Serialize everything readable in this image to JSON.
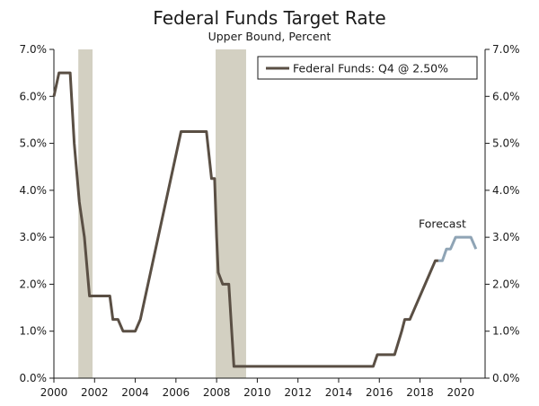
{
  "chart_data": {
    "type": "line",
    "title": "Federal Funds Target Rate",
    "subtitle": "Upper Bound, Percent",
    "xlabel": "",
    "ylabel": "",
    "xlim": [
      2000,
      2021.2
    ],
    "ylim": [
      0,
      7
    ],
    "x_ticks": [
      2000,
      2002,
      2004,
      2006,
      2008,
      2010,
      2012,
      2014,
      2016,
      2018,
      2020
    ],
    "x_tick_labels": [
      "2000",
      "2002",
      "2004",
      "2006",
      "2008",
      "2010",
      "2012",
      "2014",
      "2016",
      "2018",
      "2020"
    ],
    "y_ticks": [
      0,
      1,
      2,
      3,
      4,
      5,
      6,
      7
    ],
    "y_tick_labels": [
      "0.0%",
      "1.0%",
      "2.0%",
      "3.0%",
      "4.0%",
      "5.0%",
      "6.0%",
      "7.0%"
    ],
    "legend": {
      "label": "Federal Funds: Q4 @ 2.50%",
      "position": "top-right"
    },
    "annotation": {
      "text": "Forecast",
      "x": 2019.1,
      "y": 3.2
    },
    "recessions": [
      {
        "start": 2001.2,
        "end": 2001.9
      },
      {
        "start": 2007.95,
        "end": 2009.45
      }
    ],
    "series": [
      {
        "name": "Federal Funds",
        "color": "#5a4f44",
        "points": [
          [
            2000.0,
            6.0
          ],
          [
            2000.25,
            6.5
          ],
          [
            2000.8,
            6.5
          ],
          [
            2001.0,
            5.0
          ],
          [
            2001.25,
            3.75
          ],
          [
            2001.5,
            3.0
          ],
          [
            2001.75,
            1.75
          ],
          [
            2002.75,
            1.75
          ],
          [
            2002.9,
            1.25
          ],
          [
            2003.15,
            1.25
          ],
          [
            2003.4,
            1.0
          ],
          [
            2004.0,
            1.0
          ],
          [
            2004.25,
            1.25
          ],
          [
            2006.25,
            5.25
          ],
          [
            2007.5,
            5.25
          ],
          [
            2007.75,
            4.25
          ],
          [
            2007.9,
            4.25
          ],
          [
            2008.0,
            3.0
          ],
          [
            2008.08,
            2.25
          ],
          [
            2008.3,
            2.0
          ],
          [
            2008.6,
            2.0
          ],
          [
            2008.85,
            0.25
          ],
          [
            2015.7,
            0.25
          ],
          [
            2015.9,
            0.5
          ],
          [
            2016.75,
            0.5
          ],
          [
            2017.1,
            1.0
          ],
          [
            2017.25,
            1.25
          ],
          [
            2017.5,
            1.25
          ],
          [
            2017.75,
            1.5
          ],
          [
            2018.0,
            1.75
          ],
          [
            2018.5,
            2.25
          ],
          [
            2018.75,
            2.5
          ],
          [
            2018.9,
            2.5
          ]
        ]
      },
      {
        "name": "Forecast",
        "color": "#8fa4b5",
        "points": [
          [
            2018.9,
            2.5
          ],
          [
            2019.1,
            2.5
          ],
          [
            2019.3,
            2.75
          ],
          [
            2019.5,
            2.75
          ],
          [
            2019.75,
            3.0
          ],
          [
            2020.5,
            3.0
          ],
          [
            2020.75,
            2.75
          ]
        ]
      }
    ]
  }
}
